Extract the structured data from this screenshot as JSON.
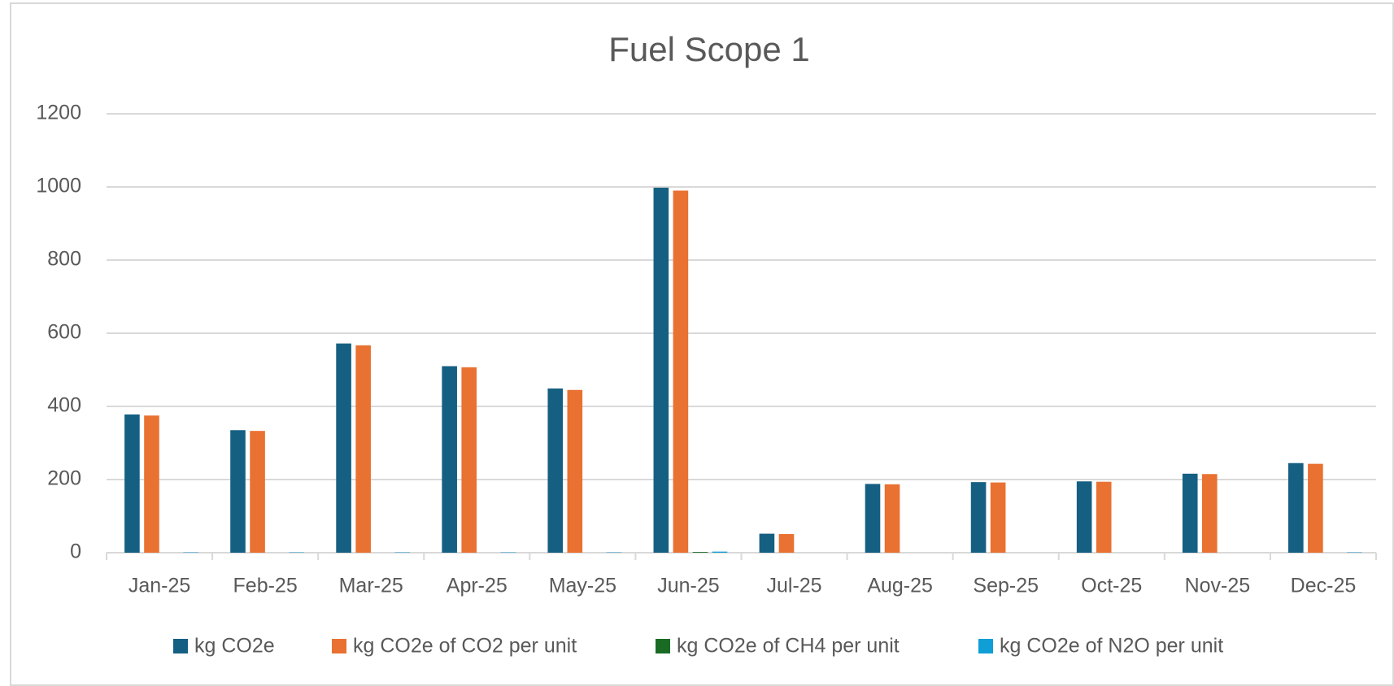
{
  "chart_data": {
    "type": "bar",
    "title": "Fuel Scope 1",
    "categories": [
      "Jan-25",
      "Feb-25",
      "Mar-25",
      "Apr-25",
      "May-25",
      "Jun-25",
      "Jul-25",
      "Aug-25",
      "Sep-25",
      "Oct-25",
      "Nov-25",
      "Dec-25"
    ],
    "series": [
      {
        "name": "kg CO2e",
        "color": "#156082",
        "values": [
          378,
          335,
          572,
          510,
          449,
          998,
          52,
          188,
          193,
          195,
          216,
          245
        ]
      },
      {
        "name": "kg CO2e of CO2 per unit",
        "color": "#e97132",
        "values": [
          375,
          333,
          567,
          507,
          445,
          990,
          51,
          187,
          192,
          194,
          215,
          243
        ]
      },
      {
        "name": "kg CO2e of CH4 per unit",
        "color": "#196b24",
        "values": [
          0,
          0,
          0,
          0,
          0,
          2,
          0,
          0,
          0,
          0,
          0,
          0
        ]
      },
      {
        "name": "kg CO2e of N2O per unit",
        "color": "#0f9ed5",
        "values": [
          1,
          1,
          1,
          1,
          1,
          3,
          0,
          0,
          0,
          0,
          0,
          1
        ]
      }
    ],
    "ylim": [
      0,
      1200
    ],
    "yticks": [
      0,
      200,
      400,
      600,
      800,
      1000,
      1200
    ],
    "grid": true,
    "legend": "bottom"
  }
}
